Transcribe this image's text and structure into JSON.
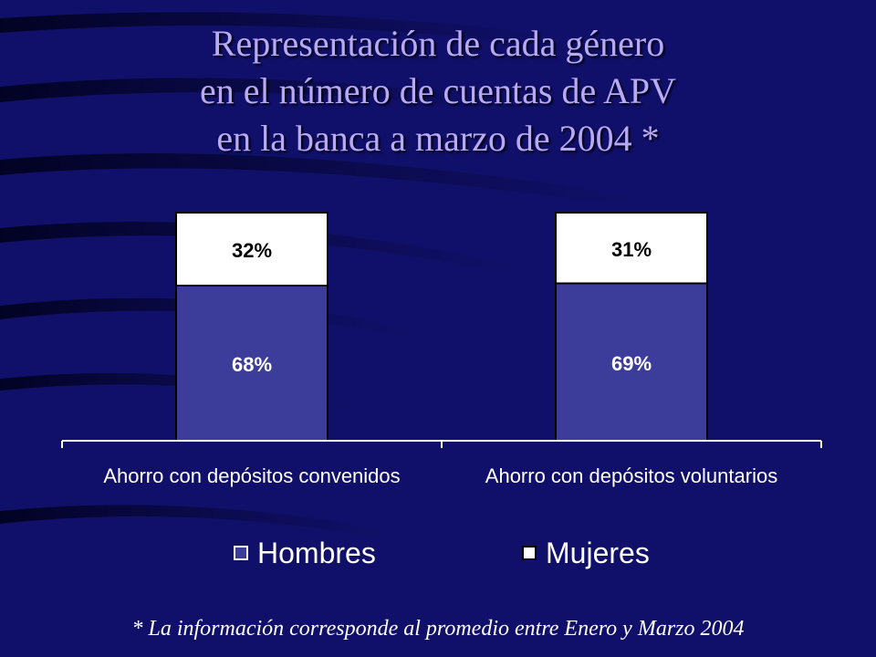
{
  "title_lines": [
    "Representación de cada género",
    "en el número de cuentas de APV",
    "en la banca a marzo de 2004 *"
  ],
  "footnote": "* La información corresponde al promedio entre Enero y Marzo 2004",
  "colors": {
    "background": "#10106a",
    "title": "#b9a9f2",
    "hombres": "#3c3c9a",
    "mujeres": "#ffffff",
    "axis": "#ffffff"
  },
  "chart_data": {
    "type": "bar",
    "stacked": true,
    "categories": [
      "Ahorro con depósitos convenidos",
      "Ahorro con depósitos voluntarios"
    ],
    "series": [
      {
        "name": "Hombres",
        "values": [
          68,
          69
        ],
        "labels": [
          "68%",
          "69%"
        ],
        "color": "#3c3c9a"
      },
      {
        "name": "Mujeres",
        "values": [
          32,
          31
        ],
        "labels": [
          "32%",
          "31%"
        ],
        "color": "#ffffff"
      }
    ],
    "ylim": [
      0,
      100
    ],
    "unit": "%",
    "grid": false,
    "legend": "bottom"
  }
}
